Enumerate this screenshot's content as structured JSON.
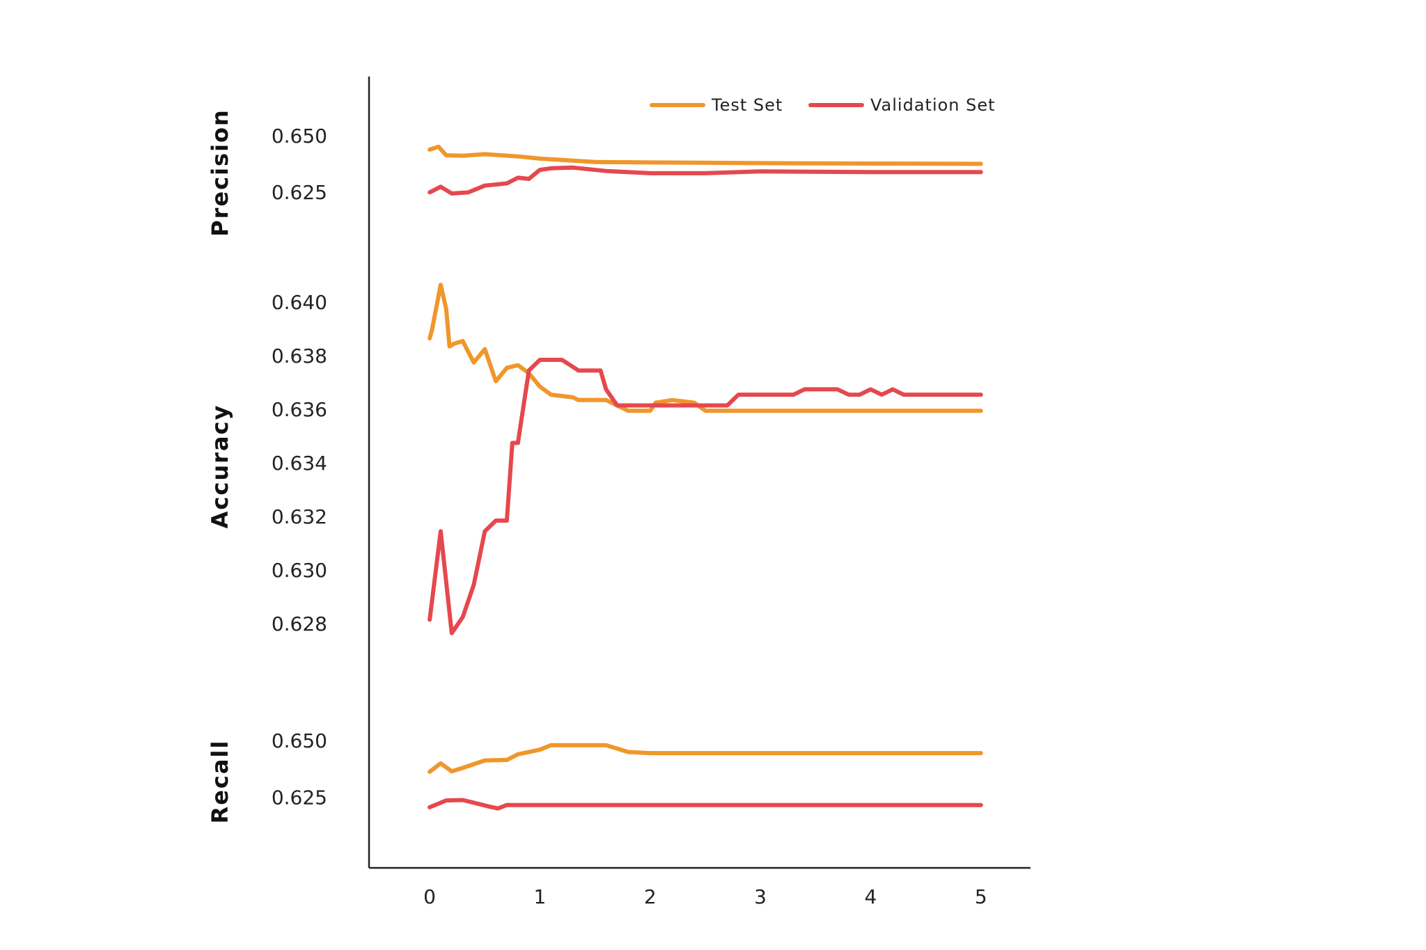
{
  "chart_data": {
    "type": "line",
    "layout": "stacked-panels",
    "grid": false,
    "legend_position": "top-right",
    "colors": {
      "test": "#F0962A",
      "validation": "#E5484D",
      "axis": "#222222"
    },
    "legend": [
      "Test Set",
      "Validation Set"
    ],
    "x_axis": {
      "ticks": [
        "0",
        "1",
        "2",
        "3",
        "4",
        "5"
      ],
      "xlim": [
        -0.55,
        5.45
      ]
    },
    "panels": [
      {
        "ylabel": "Precision",
        "yticks": [
          "0.650",
          "0.625"
        ],
        "ylim": [
          0.612,
          0.664
        ],
        "series": [
          {
            "name": "Test Set",
            "x": [
              0,
              0.08,
              0.15,
              0.3,
              0.5,
              0.8,
              1.0,
              1.5,
              2.0,
              3.0,
              4.0,
              5.0
            ],
            "y": [
              0.6445,
              0.6458,
              0.642,
              0.6418,
              0.6425,
              0.6415,
              0.6405,
              0.639,
              0.6388,
              0.6385,
              0.6383,
              0.6382
            ]
          },
          {
            "name": "Validation Set",
            "x": [
              0,
              0.1,
              0.2,
              0.35,
              0.5,
              0.7,
              0.8,
              0.9,
              1.0,
              1.1,
              1.3,
              1.6,
              2.0,
              2.5,
              3.0,
              4.0,
              5.0
            ],
            "y": [
              0.6255,
              0.628,
              0.625,
              0.6255,
              0.6285,
              0.6295,
              0.632,
              0.6315,
              0.6355,
              0.6362,
              0.6365,
              0.635,
              0.634,
              0.634,
              0.6348,
              0.6345,
              0.6345
            ]
          }
        ]
      },
      {
        "ylabel": "Accuracy",
        "yticks": [
          "0.640",
          "0.638",
          "0.636",
          "0.634",
          "0.632",
          "0.630",
          "0.628"
        ],
        "ylim": [
          0.6266,
          0.6412
        ],
        "series": [
          {
            "name": "Test Set",
            "x": [
              0,
              0.02,
              0.1,
              0.15,
              0.18,
              0.22,
              0.3,
              0.4,
              0.5,
              0.6,
              0.7,
              0.8,
              0.9,
              1.0,
              1.1,
              1.3,
              1.35,
              1.6,
              1.7,
              1.8,
              2.0,
              2.05,
              2.2,
              2.4,
              2.5,
              3.0,
              4.0,
              5.0
            ],
            "y": [
              0.6387,
              0.639,
              0.6407,
              0.6398,
              0.6384,
              0.6385,
              0.6386,
              0.6378,
              0.6383,
              0.6371,
              0.6376,
              0.6377,
              0.6374,
              0.6369,
              0.6366,
              0.6365,
              0.6364,
              0.6364,
              0.6362,
              0.636,
              0.636,
              0.6363,
              0.6364,
              0.6363,
              0.636,
              0.636,
              0.636,
              0.636
            ]
          },
          {
            "name": "Validation Set",
            "x": [
              0,
              0.1,
              0.2,
              0.3,
              0.4,
              0.5,
              0.6,
              0.7,
              0.75,
              0.8,
              0.9,
              1.0,
              1.05,
              1.2,
              1.35,
              1.55,
              1.6,
              1.7,
              2.0,
              2.7,
              2.8,
              3.3,
              3.4,
              3.7,
              3.8,
              3.9,
              4.0,
              4.1,
              4.2,
              4.3,
              4.5,
              5.0
            ],
            "y": [
              0.6282,
              0.6315,
              0.6277,
              0.6283,
              0.6295,
              0.6315,
              0.6319,
              0.6319,
              0.6348,
              0.6348,
              0.6375,
              0.6379,
              0.6379,
              0.6379,
              0.6375,
              0.6375,
              0.6368,
              0.6362,
              0.6362,
              0.6362,
              0.6366,
              0.6366,
              0.6368,
              0.6368,
              0.6366,
              0.6366,
              0.6368,
              0.6366,
              0.6368,
              0.6366,
              0.6366,
              0.6366
            ]
          }
        ]
      },
      {
        "ylabel": "Recall",
        "yticks": [
          "0.650",
          "0.625"
        ],
        "ylim": [
          0.612,
          0.664
        ],
        "series": [
          {
            "name": "Test Set",
            "x": [
              0,
              0.1,
              0.2,
              0.3,
              0.5,
              0.7,
              0.8,
              1.0,
              1.1,
              1.3,
              1.6,
              1.8,
              2.0,
              3.0,
              4.0,
              5.0
            ],
            "y": [
              0.6368,
              0.6405,
              0.637,
              0.6385,
              0.6418,
              0.642,
              0.6445,
              0.6465,
              0.6485,
              0.6485,
              0.6485,
              0.6455,
              0.645,
              0.645,
              0.645,
              0.645
            ]
          },
          {
            "name": "Validation Set",
            "x": [
              0,
              0.15,
              0.3,
              0.45,
              0.55,
              0.62,
              0.7,
              1.0,
              2.0,
              3.0,
              4.0,
              5.0
            ],
            "y": [
              0.6212,
              0.6242,
              0.6244,
              0.6226,
              0.6214,
              0.6207,
              0.6222,
              0.6222,
              0.6222,
              0.6222,
              0.6222,
              0.6222
            ]
          }
        ]
      }
    ]
  }
}
